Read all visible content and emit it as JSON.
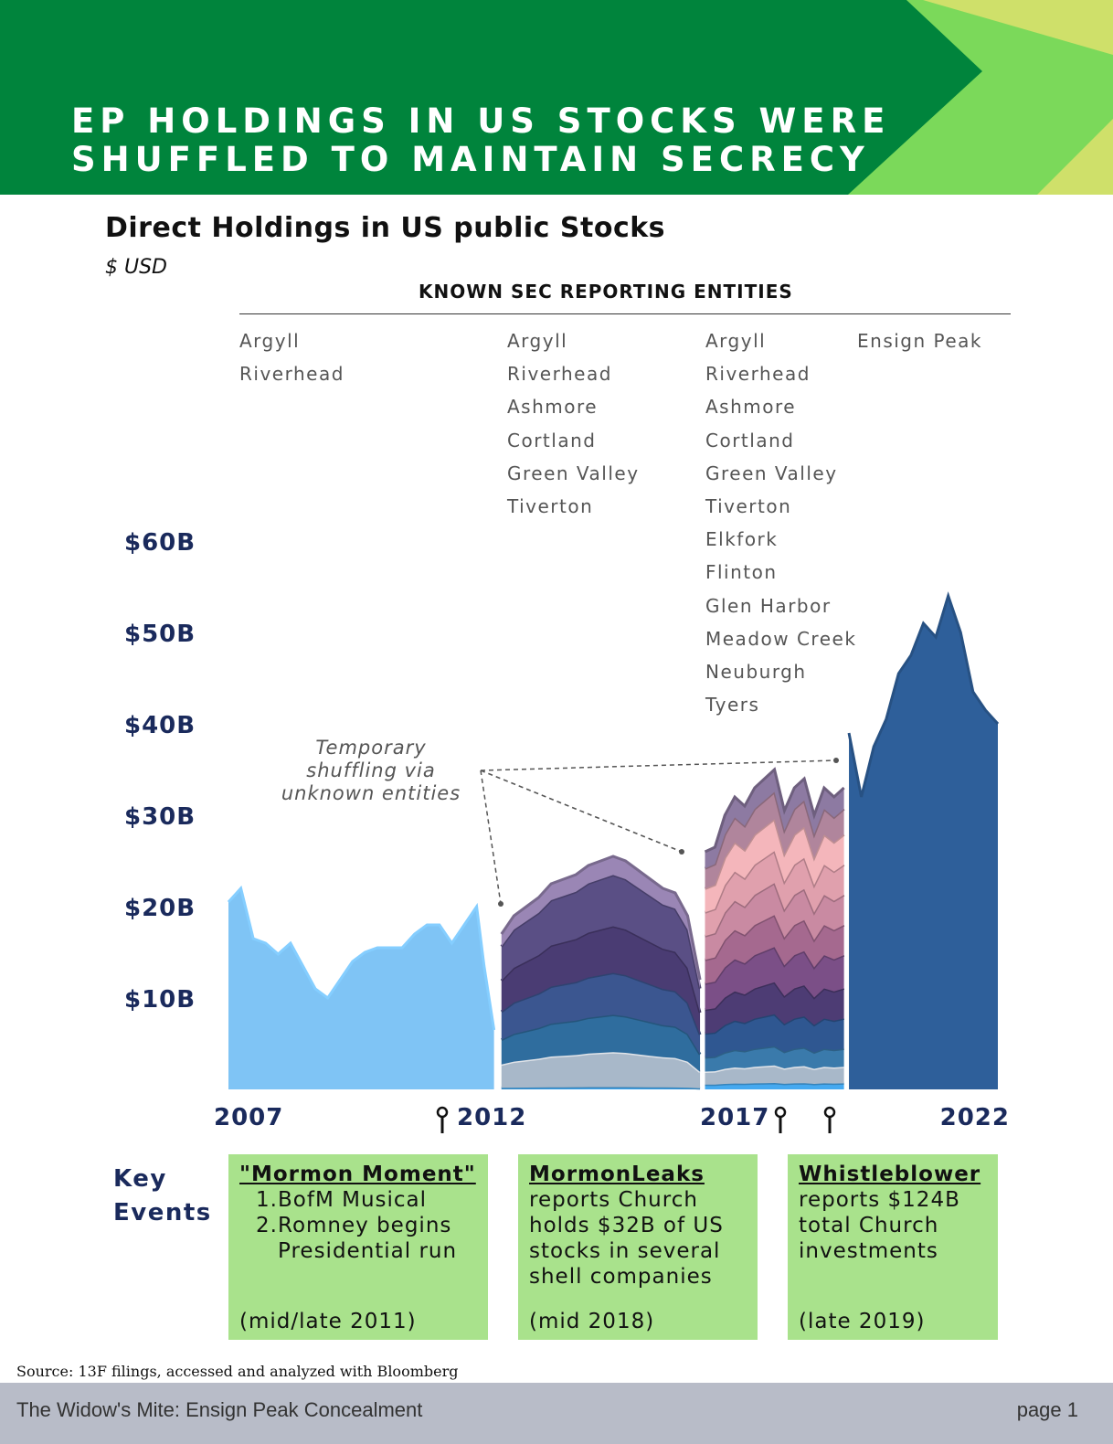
{
  "header": {
    "title_line1": "EP HOLDINGS IN US STOCKS WERE",
    "title_line2": "SHUFFLED TO MAINTAIN SECRECY",
    "colors": {
      "green": "#00843c",
      "light_green": "#7bd95a",
      "lime": "#cfe06a"
    }
  },
  "subtitle": "Direct Holdings in US public Stocks",
  "unit": "$ USD",
  "entities_heading": "KNOWN SEC REPORTING ENTITIES",
  "entity_columns": [
    [
      "Argyll",
      "Riverhead"
    ],
    [
      "Argyll",
      "Riverhead",
      "Ashmore",
      "Cortland",
      "Green Valley",
      "Tiverton"
    ],
    [
      "Argyll",
      "Riverhead",
      "Ashmore",
      "Cortland",
      "Green Valley",
      "Tiverton",
      "Elkfork",
      "Flinton",
      "Glen Harbor",
      "Meadow Creek",
      "Neuburgh",
      "Tyers"
    ],
    [
      "Ensign Peak"
    ]
  ],
  "chart_data": {
    "type": "area",
    "ylim": [
      0,
      60
    ],
    "y_tick_labels": [
      "$10B",
      "$20B",
      "$30B",
      "$40B",
      "$50B",
      "$60B"
    ],
    "x_tick_labels": [
      "2007",
      "2012",
      "2017",
      "2022"
    ],
    "annotation": [
      "Temporary",
      "shuffling via",
      "unknown entities"
    ],
    "segments": [
      {
        "period": "2007-2012",
        "x": [
          2007.0,
          2007.25,
          2007.5,
          2007.75,
          2008.0,
          2008.25,
          2008.5,
          2008.75,
          2009.0,
          2009.25,
          2009.5,
          2009.75,
          2010.0,
          2010.25,
          2010.5,
          2010.75,
          2011.0,
          2011.25,
          2011.5,
          2011.75,
          2012.0,
          2012.15,
          2012.35
        ],
        "total": [
          20.5,
          22.0,
          16.5,
          16.0,
          14.8,
          16.0,
          13.5,
          11.0,
          10.0,
          12.0,
          14.0,
          15.0,
          15.5,
          15.5,
          15.5,
          17.0,
          18.0,
          18.0,
          16.0,
          18.0,
          20.0,
          13.5,
          6.5
        ],
        "color": "#7fc4f5"
      },
      {
        "period": "2012-2016",
        "x": [
          2012.5,
          2012.75,
          2013.0,
          2013.25,
          2013.5,
          2013.75,
          2014.0,
          2014.25,
          2014.5,
          2014.75,
          2015.0,
          2015.25,
          2015.5,
          2015.75,
          2016.0,
          2016.25,
          2016.5
        ],
        "totals": [
          17.0,
          19.0,
          20.0,
          21.0,
          22.5,
          23.0,
          23.5,
          24.5,
          25.0,
          25.5,
          25.0,
          24.0,
          23.0,
          22.0,
          21.5,
          19.0,
          12.0
        ],
        "layer_shares": [
          0.01,
          0.15,
          0.16,
          0.18,
          0.2,
          0.22,
          0.08
        ],
        "layer_colors": [
          "#45a9f0",
          "#a8b8c9",
          "#2f6d9e",
          "#3b5690",
          "#4a3c73",
          "#5a4f85",
          "#9a86b5"
        ]
      },
      {
        "period": "2016-2019",
        "x": [
          2016.6,
          2016.8,
          2017.0,
          2017.2,
          2017.4,
          2017.6,
          2017.8,
          2018.0,
          2018.2,
          2018.4,
          2018.6,
          2018.8,
          2019.0,
          2019.2,
          2019.4
        ],
        "totals": [
          26.0,
          26.5,
          30.0,
          32.0,
          31.0,
          33.0,
          34.0,
          35.0,
          30.5,
          33.0,
          34.0,
          30.0,
          33.0,
          32.0,
          33.0
        ],
        "layer_shares": [
          0.02,
          0.055,
          0.06,
          0.1,
          0.1,
          0.11,
          0.1,
          0.1,
          0.1,
          0.1,
          0.085,
          0.07
        ],
        "layer_colors": [
          "#45a9f0",
          "#a8b8c9",
          "#3a7aab",
          "#2f5791",
          "#4d3c74",
          "#7b4f87",
          "#a5698f",
          "#c98aa2",
          "#e0a0ad",
          "#f4b6bb",
          "#b0859c",
          "#8d7aa2"
        ]
      },
      {
        "period": "2019-2022",
        "x": [
          2019.5,
          2019.75,
          2020.0,
          2020.25,
          2020.5,
          2020.75,
          2021.0,
          2021.25,
          2021.5,
          2021.75,
          2022.0,
          2022.25,
          2022.5
        ],
        "total": [
          39.0,
          32.0,
          37.5,
          40.5,
          45.5,
          47.5,
          51.0,
          49.5,
          54.0,
          50.0,
          43.5,
          41.5,
          40.0
        ],
        "color": "#2e5f9a"
      }
    ]
  },
  "key_events": {
    "label_line1": "Key",
    "label_line2": "Events",
    "events": [
      {
        "title": "\"Mormon Moment\"",
        "items": [
          "BofM Musical",
          "Romney begins Presidential run"
        ],
        "date": "(mid/late 2011)"
      },
      {
        "title": "MormonLeaks",
        "body": "reports Church holds $32B of US stocks in several shell companies",
        "date": "(mid 2018)"
      },
      {
        "title": "Whistleblower",
        "body": "reports $124B total Church investments",
        "date": "(late 2019)"
      }
    ]
  },
  "source": "Source: 13F filings, accessed and analyzed with Bloomberg",
  "footer": {
    "title": "The Widow's Mite: Ensign Peak Concealment",
    "page": "page 1"
  }
}
